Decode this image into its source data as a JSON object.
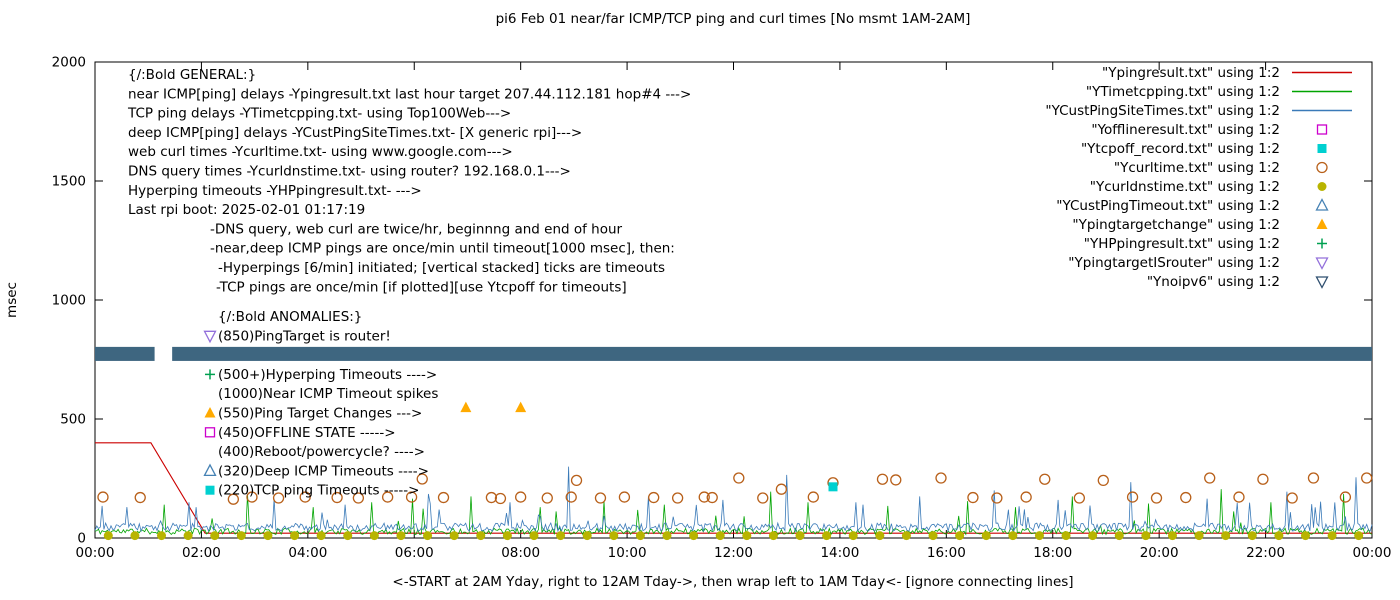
{
  "chart_data": {
    "type": "line",
    "title": "pi6 Feb 01  near/far ICMP/TCP ping and curl times [No msmt 1AM-2AM]",
    "xlabel": "<-START at 2AM Yday, right to 12AM Tday->, then wrap left to 1AM Tday<- [ignore connecting lines]",
    "ylabel": "msec",
    "xlim": [
      0,
      24
    ],
    "ylim": [
      0,
      2000
    ],
    "xtick_labels": [
      "00:00",
      "02:00",
      "04:00",
      "06:00",
      "08:00",
      "10:00",
      "12:00",
      "14:00",
      "16:00",
      "18:00",
      "20:00",
      "22:00",
      "00:00"
    ],
    "yticks": [
      0,
      500,
      1000,
      1500,
      2000
    ],
    "legend_title": "",
    "legend": [
      {
        "label": "\"Ypingresult.txt\" using 1:2",
        "marker": "line",
        "color": "#cc0000"
      },
      {
        "label": "\"YTimetcpping.txt\" using 1:2",
        "marker": "line",
        "color": "#00a400"
      },
      {
        "label": "\"YCustPingSiteTimes.txt\" using 1:2",
        "marker": "line",
        "color": "#3a7ab8"
      },
      {
        "label": "\"Yofflineresult.txt\" using 1:2",
        "marker": "square-open",
        "color": "#cc00cc"
      },
      {
        "label": "\"Ytcpoff_record.txt\" using 1:2",
        "marker": "square-filled",
        "color": "#00d0d0"
      },
      {
        "label": "\"Ycurltime.txt\" using 1:2",
        "marker": "circle-open",
        "color": "#b8601a"
      },
      {
        "label": "\"Ycurldnstime.txt\" using 1:2",
        "marker": "circle-filled",
        "color": "#b8b400"
      },
      {
        "label": "\"YCustPingTimeout.txt\" using 1:2",
        "marker": "tri-up-open",
        "color": "#4682b4"
      },
      {
        "label": "\"Ypingtargetchange\" using 1:2",
        "marker": "tri-up-filled",
        "color": "#ffaa00"
      },
      {
        "label": "\"YHPpingresult.txt\" using 1:2",
        "marker": "plus",
        "color": "#00a050"
      },
      {
        "label": "\"YpingtargetISrouter\" using 1:2",
        "marker": "tri-down-open",
        "color": "#9370db"
      },
      {
        "label": "\"Ynoipv6\" using 1:2",
        "marker": "tri-down-open",
        "color": "#2f4f6f"
      }
    ],
    "band": {
      "name": "Ynoipv6-band",
      "segments": [
        [
          0,
          1.12
        ],
        [
          1.45,
          24
        ]
      ],
      "y_range_msec": [
        744,
        803
      ],
      "color": "#3e6680"
    },
    "series": [
      {
        "name": "Ypingresult",
        "color": "#cc0000",
        "keypoints": [
          [
            0,
            400
          ],
          [
            1.05,
            400
          ],
          [
            2.07,
            20
          ],
          [
            24,
            20
          ]
        ]
      },
      {
        "name": "YTimetcpping",
        "color": "#00a400",
        "baseline": 28,
        "noise": 13,
        "seed": 11,
        "spike_prob": 0.02,
        "spike_amp": 110,
        "spikes": [
          [
            1.3,
            140
          ],
          [
            2.85,
            185
          ],
          [
            4.1,
            130
          ],
          [
            5.2,
            150
          ],
          [
            5.95,
            165
          ],
          [
            7.05,
            175
          ],
          [
            8.35,
            130
          ],
          [
            9.55,
            155
          ],
          [
            10.7,
            140
          ],
          [
            12.7,
            195
          ],
          [
            13.4,
            150
          ],
          [
            14.9,
            135
          ],
          [
            16.4,
            155
          ],
          [
            17.3,
            130
          ],
          [
            18.35,
            175
          ],
          [
            19.8,
            145
          ],
          [
            21.15,
            205
          ],
          [
            22.1,
            150
          ],
          [
            23.45,
            185
          ]
        ]
      },
      {
        "name": "YCustPingSiteTimes",
        "color": "#3a7ab8",
        "baseline": 46,
        "noise": 17,
        "seed": 23,
        "spike_prob": 0.04,
        "spike_amp": 110,
        "spikes": [
          [
            0.6,
            130
          ],
          [
            1.75,
            150
          ],
          [
            3.35,
            165
          ],
          [
            4.7,
            140
          ],
          [
            6.25,
            185
          ],
          [
            7.8,
            150
          ],
          [
            8.9,
            300
          ],
          [
            10.4,
            175
          ],
          [
            11.8,
            160
          ],
          [
            13.0,
            265
          ],
          [
            14.3,
            150
          ],
          [
            15.5,
            175
          ],
          [
            16.9,
            200
          ],
          [
            18.1,
            160
          ],
          [
            19.45,
            235
          ],
          [
            20.9,
            165
          ],
          [
            22.4,
            195
          ],
          [
            23.7,
            255
          ]
        ]
      },
      {
        "name": "Ycurltime",
        "color": "#b8601a",
        "marker": "circle-open",
        "points": [
          [
            0.15,
            172
          ],
          [
            0.85,
            170
          ],
          [
            2.6,
            163
          ],
          [
            2.95,
            172
          ],
          [
            3.45,
            168
          ],
          [
            3.95,
            172
          ],
          [
            4.55,
            170
          ],
          [
            4.95,
            168
          ],
          [
            5.5,
            172
          ],
          [
            5.95,
            172
          ],
          [
            6.15,
            248
          ],
          [
            6.55,
            170
          ],
          [
            7.45,
            170
          ],
          [
            7.62,
            166
          ],
          [
            8.0,
            172
          ],
          [
            8.5,
            168
          ],
          [
            8.95,
            172
          ],
          [
            9.05,
            242
          ],
          [
            9.5,
            168
          ],
          [
            9.95,
            172
          ],
          [
            10.5,
            170
          ],
          [
            10.95,
            168
          ],
          [
            11.45,
            172
          ],
          [
            11.6,
            170
          ],
          [
            12.1,
            252
          ],
          [
            12.55,
            168
          ],
          [
            12.9,
            205
          ],
          [
            13.5,
            172
          ],
          [
            13.87,
            232
          ],
          [
            14.8,
            247
          ],
          [
            15.05,
            244
          ],
          [
            15.9,
            252
          ],
          [
            16.5,
            170
          ],
          [
            16.95,
            168
          ],
          [
            17.5,
            172
          ],
          [
            17.85,
            247
          ],
          [
            18.5,
            168
          ],
          [
            18.95,
            242
          ],
          [
            19.5,
            172
          ],
          [
            19.95,
            168
          ],
          [
            20.5,
            170
          ],
          [
            20.95,
            252
          ],
          [
            21.5,
            172
          ],
          [
            21.95,
            247
          ],
          [
            22.5,
            168
          ],
          [
            22.9,
            252
          ],
          [
            23.5,
            172
          ],
          [
            23.9,
            252
          ]
        ]
      },
      {
        "name": "Ycurldnstime",
        "color": "#b8b400",
        "marker": "circle-filled",
        "generate": {
          "from": 0.25,
          "to": 23.75,
          "step": 0.5,
          "value": 10
        }
      },
      {
        "name": "Ytcpoff_record",
        "color": "#00d0d0",
        "marker": "square-filled",
        "points": [
          [
            13.87,
            215
          ]
        ]
      },
      {
        "name": "Ypingtargetchange",
        "color": "#ffaa00",
        "marker": "tri-up-filled",
        "points": [
          [
            6.97,
            548
          ],
          [
            8.0,
            548
          ]
        ]
      }
    ],
    "annotations": [
      {
        "x": 128,
        "y": 79,
        "lh": 19.3,
        "lines": [
          {
            "text": "{/:Bold GENERAL:}"
          },
          {
            "text": "near ICMP[ping] delays -Ypingresult.txt last hour target 207.44.112.181 hop#4 --->"
          },
          {
            "text": "TCP ping delays -YTimetcpping.txt- using Top100Web--->"
          },
          {
            "text": "deep ICMP[ping] delays -YCustPingSiteTimes.txt- [X generic rpi]--->"
          },
          {
            "text": "web curl times -Ycurltime.txt- using www.google.com--->"
          },
          {
            "text": "DNS query times -Ycurldnstime.txt- using router? 192.168.0.1--->"
          },
          {
            "text": "Hyperping timeouts -YHPpingresult.txt- --->"
          },
          {
            "text": "Last rpi boot: 2025-02-01 01:17:19"
          },
          {
            "text": "-DNS query, web curl are twice/hr, beginnng and end of hour",
            "dx": 82
          },
          {
            "text": "-near,deep ICMP pings are once/min until timeout[1000 msec], then:",
            "dx": 82
          },
          {
            "text": "-Hyperpings [6/min] initiated; [vertical stacked] ticks are timeouts",
            "dx": 90
          },
          {
            "text": "-TCP pings are once/min [if plotted][use Ytcpoff for timeouts]",
            "dx": 88
          }
        ]
      },
      {
        "x": 218,
        "y": 321,
        "lh": 19.3,
        "lines": [
          {
            "text": "{/:Bold ANOMALIES:}"
          },
          {
            "text": "(850)PingTarget is router!",
            "marker": "tri-down-open",
            "marker_color": "#9370db"
          },
          {
            "text": ""
          },
          {
            "text": "(500+)Hyperping Timeouts ---->",
            "marker": "plus",
            "marker_color": "#00a050"
          },
          {
            "text": "(1000)Near ICMP Timeout spikes"
          },
          {
            "text": "(550)Ping Target Changes --->",
            "marker": "tri-up-filled",
            "marker_color": "#ffaa00"
          },
          {
            "text": "(450)OFFLINE STATE ----->",
            "marker": "square-open",
            "marker_color": "#cc00cc"
          },
          {
            "text": "(400)Reboot/powercycle? ---->"
          },
          {
            "text": "(320)Deep ICMP Timeouts ---->",
            "marker": "tri-up-open",
            "marker_color": "#4682b4"
          },
          {
            "text": "(220)TCP ping Timeouts ----->",
            "marker": "square-filled",
            "marker_color": "#00d0d0"
          }
        ]
      }
    ]
  }
}
